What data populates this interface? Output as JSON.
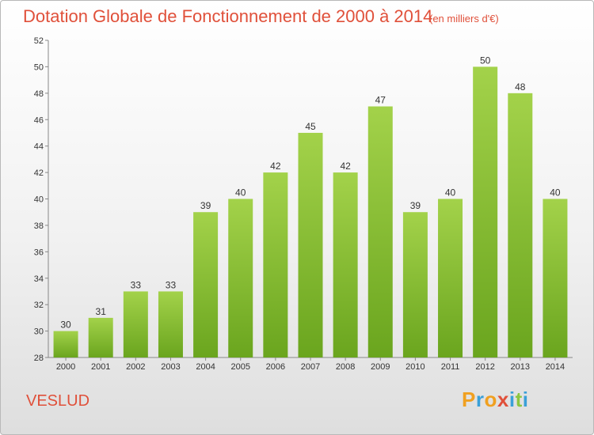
{
  "chart_data": {
    "type": "bar",
    "title": "Dotation Globale de Fonctionnement de 2000 à 2014",
    "subtitle": "(en milliers d'€)",
    "categories": [
      "2000",
      "2001",
      "2002",
      "2003",
      "2004",
      "2005",
      "2006",
      "2007",
      "2008",
      "2009",
      "2010",
      "2011",
      "2012",
      "2013",
      "2014"
    ],
    "values": [
      30,
      31,
      33,
      33,
      39,
      40,
      42,
      45,
      42,
      47,
      39,
      40,
      50,
      48,
      40
    ],
    "ylim": [
      28,
      52
    ],
    "yticks": [
      28,
      30,
      32,
      34,
      36,
      38,
      40,
      42,
      44,
      46,
      48,
      50,
      52
    ],
    "grid": false,
    "bar_color": "#7db52c",
    "bar_color_light": "#a3d24a"
  },
  "footer": {
    "place": "VESLUD",
    "logo": {
      "letters": [
        "P",
        "r",
        "o",
        "x",
        "i",
        "t",
        "i"
      ],
      "colors": [
        "#f0a020",
        "#3aa0d8",
        "#f0a020",
        "#e0503a",
        "#3aa0d8",
        "#8cc63f",
        "#3aa0d8"
      ]
    }
  },
  "colors": {
    "title": "#e0503a"
  }
}
